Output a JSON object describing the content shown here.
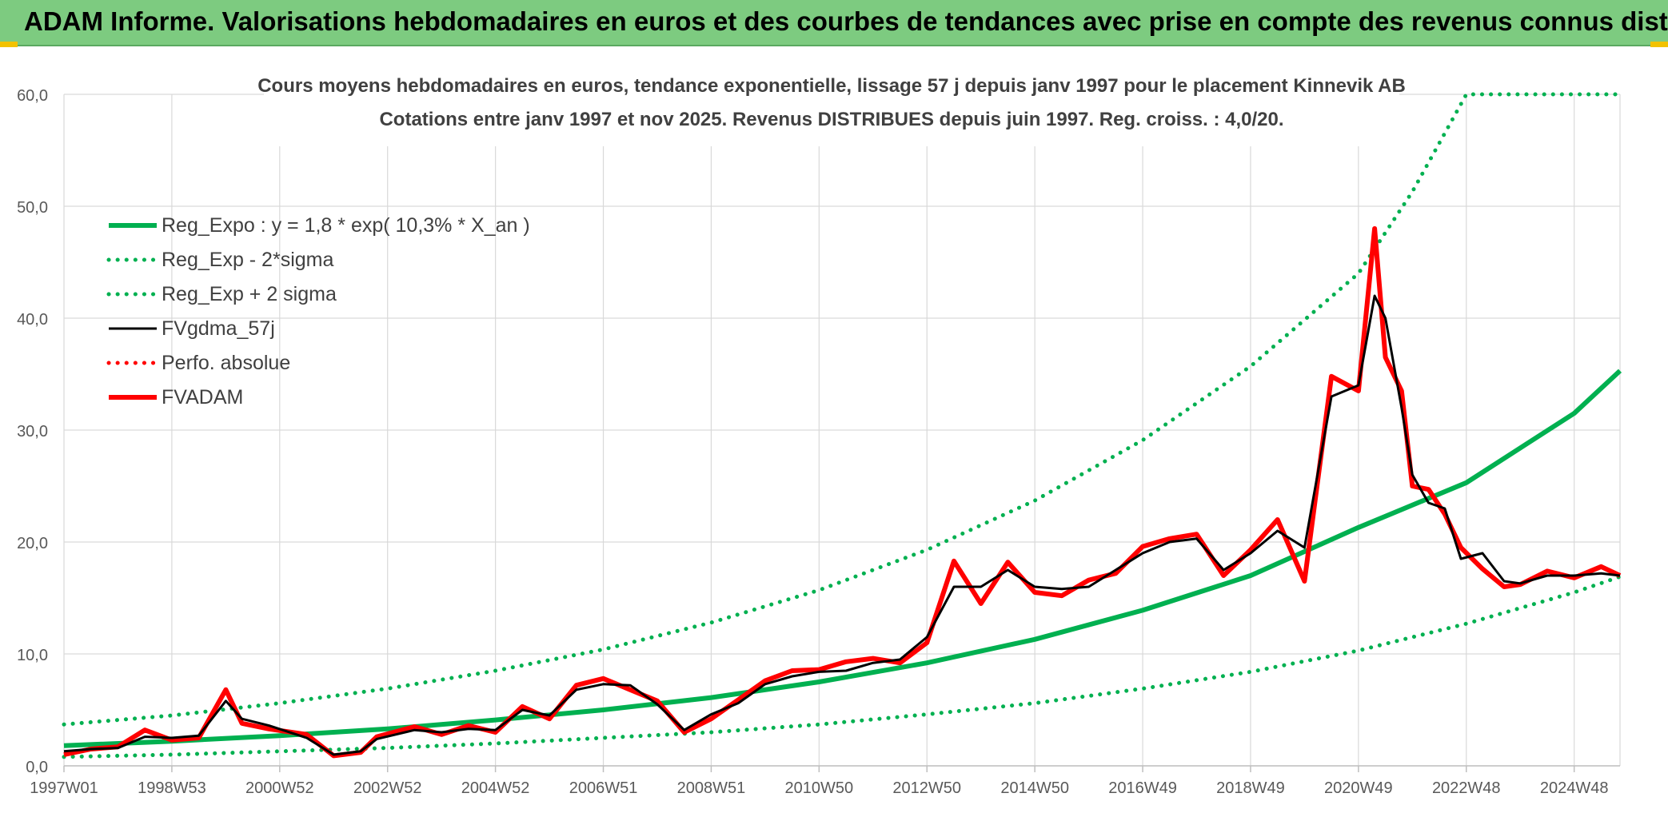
{
  "banner": {
    "title": "ADAM Informe. Valorisations hebdomadaires en euros et des courbes de tendances avec prise en compte des revenus connus distribués"
  },
  "colors": {
    "banner": "#7dcb80",
    "trend": "#00b050",
    "fv": "#000000",
    "adam": "#ff0000",
    "grid": "#d9d9d9"
  },
  "chart_data": {
    "type": "line",
    "title": "Cours moyens hebdomadaires en euros, tendance exponentielle, lissage 57 j depuis janv 1997 pour le placement Kinnevik AB",
    "subtitle": "Cotations entre janv 1997 et nov 2025. Revenus DISTRIBUES depuis juin 1997. Reg. croiss. : 4,0/20.",
    "xlabel": "",
    "ylabel": "",
    "xlim": [
      1997.0,
      2025.85
    ],
    "ylim": [
      0,
      60
    ],
    "yticks": [
      "0,0",
      "10,0",
      "20,0",
      "30,0",
      "40,0",
      "50,0",
      "60,0"
    ],
    "xticks": [
      {
        "label": "1997W01",
        "x": 1997.0
      },
      {
        "label": "1998W53",
        "x": 1999.0
      },
      {
        "label": "2000W52",
        "x": 2001.0
      },
      {
        "label": "2002W52",
        "x": 2003.0
      },
      {
        "label": "2004W52",
        "x": 2005.0
      },
      {
        "label": "2006W51",
        "x": 2007.0
      },
      {
        "label": "2008W51",
        "x": 2009.0
      },
      {
        "label": "2010W50",
        "x": 2011.0
      },
      {
        "label": "2012W50",
        "x": 2013.0
      },
      {
        "label": "2014W50",
        "x": 2015.0
      },
      {
        "label": "2016W49",
        "x": 2017.0
      },
      {
        "label": "2018W49",
        "x": 2019.0
      },
      {
        "label": "2020W49",
        "x": 2021.0
      },
      {
        "label": "2022W48",
        "x": 2023.0
      },
      {
        "label": "2024W48",
        "x": 2025.0
      }
    ],
    "legend_position": "top-left",
    "legend": [
      "Reg_Expo : y = 1,8 * exp( 10,3% *  X_an )",
      "Reg_Exp - 2*sigma",
      "Reg_Exp + 2 sigma",
      "FVgdma_57j",
      "Perfo. absolue",
      "FVADAM"
    ],
    "series": [
      {
        "name": "Reg_Expo : y = 1,8 * exp( 10,3% *  X_an )",
        "style": "solid-thick",
        "color": "#00b050",
        "x": [
          1997.0,
          1999.0,
          2001.0,
          2003.0,
          2005.0,
          2007.0,
          2009.0,
          2011.0,
          2013.0,
          2015.0,
          2017.0,
          2019.0,
          2021.0,
          2023.0,
          2025.0,
          2025.85
        ],
        "values": [
          1.8,
          2.2,
          2.7,
          3.3,
          4.1,
          5.0,
          6.1,
          7.5,
          9.2,
          11.3,
          13.9,
          17.0,
          21.3,
          25.3,
          31.5,
          35.3
        ]
      },
      {
        "name": "Reg_Exp - 2*sigma",
        "style": "dotted",
        "color": "#00b050",
        "x": [
          1997.0,
          1999.0,
          2001.0,
          2003.0,
          2005.0,
          2007.0,
          2009.0,
          2011.0,
          2013.0,
          2015.0,
          2017.0,
          2019.0,
          2021.0,
          2023.0,
          2025.0,
          2025.85
        ],
        "values": [
          0.8,
          1.0,
          1.3,
          1.6,
          2.0,
          2.5,
          3.0,
          3.7,
          4.6,
          5.6,
          6.9,
          8.4,
          10.3,
          12.7,
          15.5,
          16.9
        ]
      },
      {
        "name": "Reg_Exp + 2 sigma",
        "style": "dotted",
        "color": "#00b050",
        "x": [
          1997.0,
          1999.0,
          2001.0,
          2003.0,
          2005.0,
          2007.0,
          2009.0,
          2011.0,
          2013.0,
          2015.0,
          2017.0,
          2019.0,
          2021.0,
          2022.0,
          2023.0,
          2025.85
        ],
        "values": [
          3.7,
          4.5,
          5.6,
          6.9,
          8.5,
          10.4,
          12.8,
          15.7,
          19.3,
          23.7,
          29.1,
          35.7,
          44.0,
          51.3,
          60.0,
          60.0
        ]
      },
      {
        "name": "FVgdma_57j",
        "style": "solid",
        "color": "#000000",
        "x": [
          1997.0,
          1997.5,
          1998.0,
          1998.5,
          1999.0,
          1999.5,
          2000.0,
          2000.3,
          2000.8,
          2001.5,
          2002.0,
          2002.5,
          2002.8,
          2003.5,
          2004.0,
          2004.5,
          2005.0,
          2005.5,
          2006.0,
          2006.5,
          2007.0,
          2007.5,
          2008.0,
          2008.5,
          2009.0,
          2009.5,
          2010.0,
          2010.5,
          2011.0,
          2011.5,
          2012.0,
          2012.5,
          2013.0,
          2013.5,
          2014.0,
          2014.5,
          2015.0,
          2015.5,
          2016.0,
          2016.5,
          2017.0,
          2017.5,
          2018.0,
          2018.5,
          2019.0,
          2019.5,
          2020.0,
          2020.5,
          2021.0,
          2021.3,
          2021.5,
          2021.8,
          2022.0,
          2022.3,
          2022.6,
          2022.9,
          2023.3,
          2023.7,
          2024.0,
          2024.5,
          2025.0,
          2025.5,
          2025.85
        ],
        "values": [
          1.3,
          1.5,
          1.6,
          2.6,
          2.5,
          2.7,
          5.8,
          4.2,
          3.6,
          2.5,
          1.0,
          1.3,
          2.4,
          3.2,
          3.0,
          3.3,
          3.2,
          5.0,
          4.5,
          6.8,
          7.3,
          7.2,
          5.5,
          3.2,
          4.6,
          5.6,
          7.3,
          8.0,
          8.4,
          8.5,
          9.2,
          9.5,
          11.5,
          16.0,
          16.0,
          17.5,
          16.0,
          15.8,
          16.0,
          17.5,
          19.0,
          20.0,
          20.3,
          17.5,
          19.0,
          21.0,
          19.5,
          33.0,
          34.0,
          42.0,
          40.0,
          32.0,
          26.0,
          23.5,
          23.0,
          18.5,
          19.0,
          16.5,
          16.3,
          17.0,
          17.0,
          17.2,
          17.0
        ]
      },
      {
        "name": "Perfo. absolue",
        "style": "dotted",
        "color": "#ff0000",
        "x": [],
        "values": []
      },
      {
        "name": "FVADAM",
        "style": "solid-thick",
        "color": "#ff0000",
        "x": [
          1997.0,
          1997.5,
          1998.0,
          1998.5,
          1999.0,
          1999.5,
          2000.0,
          2000.3,
          2000.8,
          2001.5,
          2002.0,
          2002.5,
          2002.8,
          2003.5,
          2004.0,
          2004.5,
          2005.0,
          2005.5,
          2006.0,
          2006.5,
          2007.0,
          2007.5,
          2008.0,
          2008.5,
          2009.0,
          2009.5,
          2010.0,
          2010.5,
          2011.0,
          2011.5,
          2012.0,
          2012.5,
          2013.0,
          2013.5,
          2014.0,
          2014.5,
          2015.0,
          2015.5,
          2016.0,
          2016.5,
          2017.0,
          2017.5,
          2018.0,
          2018.5,
          2019.0,
          2019.5,
          2020.0,
          2020.5,
          2021.0,
          2021.3,
          2021.5,
          2021.8,
          2022.0,
          2022.3,
          2022.6,
          2022.9,
          2023.3,
          2023.7,
          2024.0,
          2024.5,
          2025.0,
          2025.5,
          2025.85
        ],
        "values": [
          1.0,
          1.5,
          1.7,
          3.2,
          2.3,
          2.5,
          6.8,
          3.8,
          3.3,
          2.8,
          0.9,
          1.2,
          2.6,
          3.5,
          2.8,
          3.6,
          3.0,
          5.3,
          4.2,
          7.2,
          7.8,
          6.8,
          5.8,
          3.0,
          4.2,
          5.9,
          7.6,
          8.5,
          8.6,
          9.3,
          9.6,
          9.2,
          11.0,
          18.3,
          14.5,
          18.2,
          15.5,
          15.2,
          16.6,
          17.2,
          19.6,
          20.3,
          20.7,
          17.0,
          19.3,
          22.0,
          16.5,
          34.8,
          33.5,
          48.0,
          36.5,
          33.5,
          25.0,
          24.7,
          22.5,
          19.5,
          17.6,
          16.0,
          16.2,
          17.4,
          16.8,
          17.8,
          17.0
        ]
      }
    ]
  }
}
